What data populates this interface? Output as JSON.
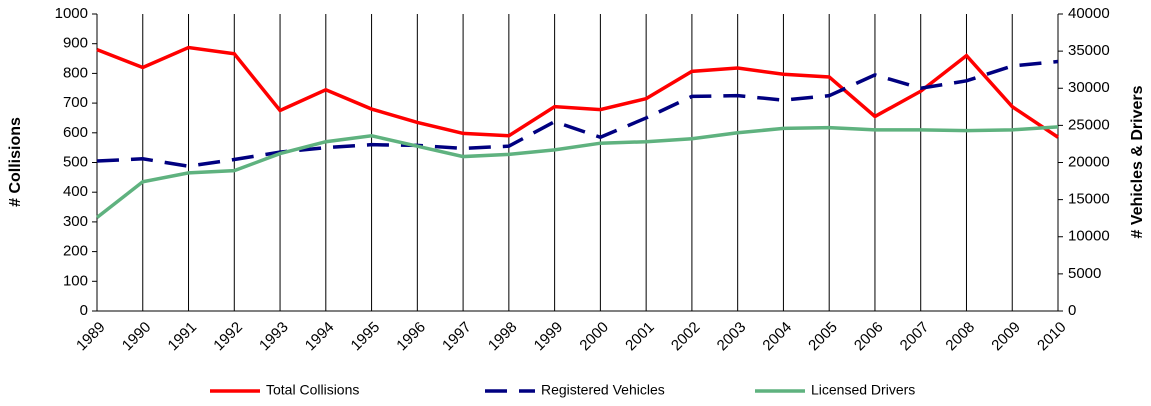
{
  "chart_data": {
    "type": "line",
    "categories": [
      "1989",
      "1990",
      "1991",
      "1992",
      "1993",
      "1994",
      "1995",
      "1996",
      "1997",
      "1998",
      "1999",
      "2000",
      "2001",
      "2002",
      "2003",
      "2004",
      "2005",
      "2006",
      "2007",
      "2008",
      "2009",
      "2010"
    ],
    "ylabel": "# Collisions",
    "y2label": "# Vehicles & Drivers",
    "ylim": [
      0,
      1000
    ],
    "yticks": [
      0,
      100,
      200,
      300,
      400,
      500,
      600,
      700,
      800,
      900,
      1000
    ],
    "y2lim": [
      0,
      40000
    ],
    "y2ticks": [
      0,
      5000,
      10000,
      15000,
      20000,
      25000,
      30000,
      35000,
      40000
    ],
    "grid": "x",
    "legend": "bottom",
    "series": [
      {
        "name": "Total Collisions",
        "color": "#ff0000",
        "dash": "solid",
        "values": [
          880,
          820,
          887,
          866,
          675,
          745,
          680,
          635,
          598,
          590,
          688,
          678,
          715,
          807,
          818,
          797,
          788,
          655,
          740,
          860,
          688,
          585
        ]
      },
      {
        "name": "Registered Vehicles",
        "color": "#000080",
        "dash": "dashed",
        "axis": "y2",
        "values": [
          20200,
          20500,
          19500,
          20400,
          21400,
          22000,
          22400,
          22300,
          21900,
          22200,
          25500,
          23400,
          26000,
          28900,
          29000,
          28400,
          29000,
          31800,
          30000,
          31000,
          33000,
          33600
        ]
      },
      {
        "name": "Licensed Drivers",
        "color": "#5fb27f",
        "dash": "solid",
        "axis": "y2",
        "values": [
          12600,
          17400,
          18600,
          18900,
          21200,
          22800,
          23600,
          22200,
          20800,
          21100,
          21700,
          22600,
          22800,
          23200,
          24000,
          24600,
          24700,
          24400,
          24400,
          24300,
          24400,
          24800
        ]
      }
    ]
  }
}
